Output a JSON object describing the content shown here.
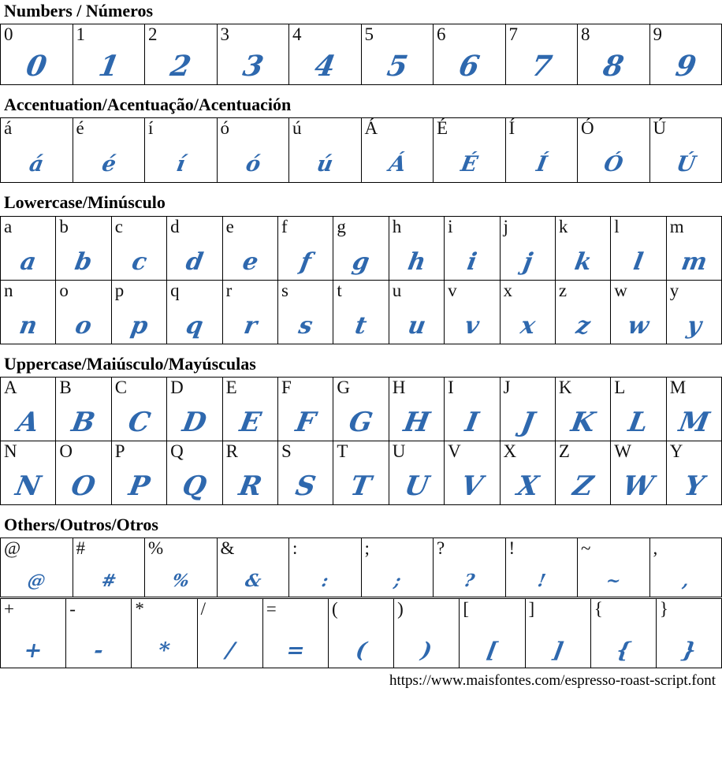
{
  "page": {
    "accent_color": "#2e68ae",
    "grid_border_color": "#000000",
    "url": "https://www.maisfontes.com/espresso-roast-script.font"
  },
  "sections": [
    {
      "id": "numbers",
      "title": "Numbers / Números",
      "rows": [
        [
          "0",
          "1",
          "2",
          "3",
          "4",
          "5",
          "6",
          "7",
          "8",
          "9"
        ]
      ]
    },
    {
      "id": "accentuation",
      "title": "Accentuation/Acentuação/Acentuación",
      "rows": [
        [
          "á",
          "é",
          "í",
          "ó",
          "ú",
          "Á",
          "É",
          "Í",
          "Ó",
          "Ú"
        ]
      ]
    },
    {
      "id": "lowercase",
      "title": "Lowercase/Minúsculo",
      "rows": [
        [
          "a",
          "b",
          "c",
          "d",
          "e",
          "f",
          "g",
          "h",
          "i",
          "j",
          "k",
          "l",
          "m"
        ],
        [
          "n",
          "o",
          "p",
          "q",
          "r",
          "s",
          "t",
          "u",
          "v",
          "x",
          "z",
          "w",
          "y"
        ]
      ]
    },
    {
      "id": "uppercase",
      "title": "Uppercase/Maiúsculo/Mayúsculas",
      "rows": [
        [
          "A",
          "B",
          "C",
          "D",
          "E",
          "F",
          "G",
          "H",
          "I",
          "J",
          "K",
          "L",
          "M"
        ],
        [
          "N",
          "O",
          "P",
          "Q",
          "R",
          "S",
          "T",
          "U",
          "V",
          "X",
          "Z",
          "W",
          "Y"
        ]
      ]
    },
    {
      "id": "others",
      "title": "Others/Outros/Otros",
      "rows": [
        [
          "@",
          "#",
          "%",
          "&",
          ":",
          ";",
          "?",
          "!",
          "~",
          ","
        ],
        [
          "+",
          "-",
          "*",
          "/",
          "=",
          "(",
          ")",
          "[",
          "]",
          "{",
          "}"
        ]
      ]
    }
  ]
}
